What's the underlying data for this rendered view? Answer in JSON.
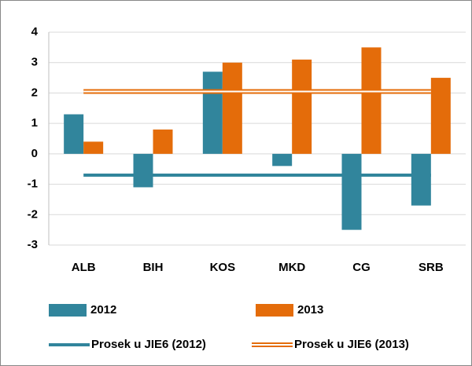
{
  "chart_data": {
    "type": "bar",
    "categories": [
      "ALB",
      "BIH",
      "KOS",
      "MKD",
      "CG",
      "SRB"
    ],
    "series": [
      {
        "name": "2012",
        "type": "bar",
        "color": "#31859c",
        "values": [
          1.3,
          -1.1,
          2.7,
          -0.4,
          -2.5,
          -1.7
        ]
      },
      {
        "name": "2013",
        "type": "bar",
        "color": "#e46c0a",
        "values": [
          0.4,
          0.8,
          3.0,
          3.1,
          3.5,
          2.5
        ]
      },
      {
        "name": "Prosek u JIE6 (2012)",
        "type": "line",
        "color": "#31859c",
        "values": [
          -0.7,
          -0.7,
          -0.7,
          -0.7,
          -0.7,
          -0.7
        ]
      },
      {
        "name": "Prosek u JIE6 (2013)",
        "type": "line",
        "style": "double",
        "color": "#e46c0a",
        "values": [
          2.05,
          2.05,
          2.05,
          2.05,
          2.05,
          2.05
        ]
      }
    ],
    "ylim": [
      -3,
      4
    ],
    "yticks": [
      -3,
      -2,
      -1,
      0,
      1,
      2,
      3,
      4
    ],
    "grid": true,
    "legend": "bottom"
  }
}
